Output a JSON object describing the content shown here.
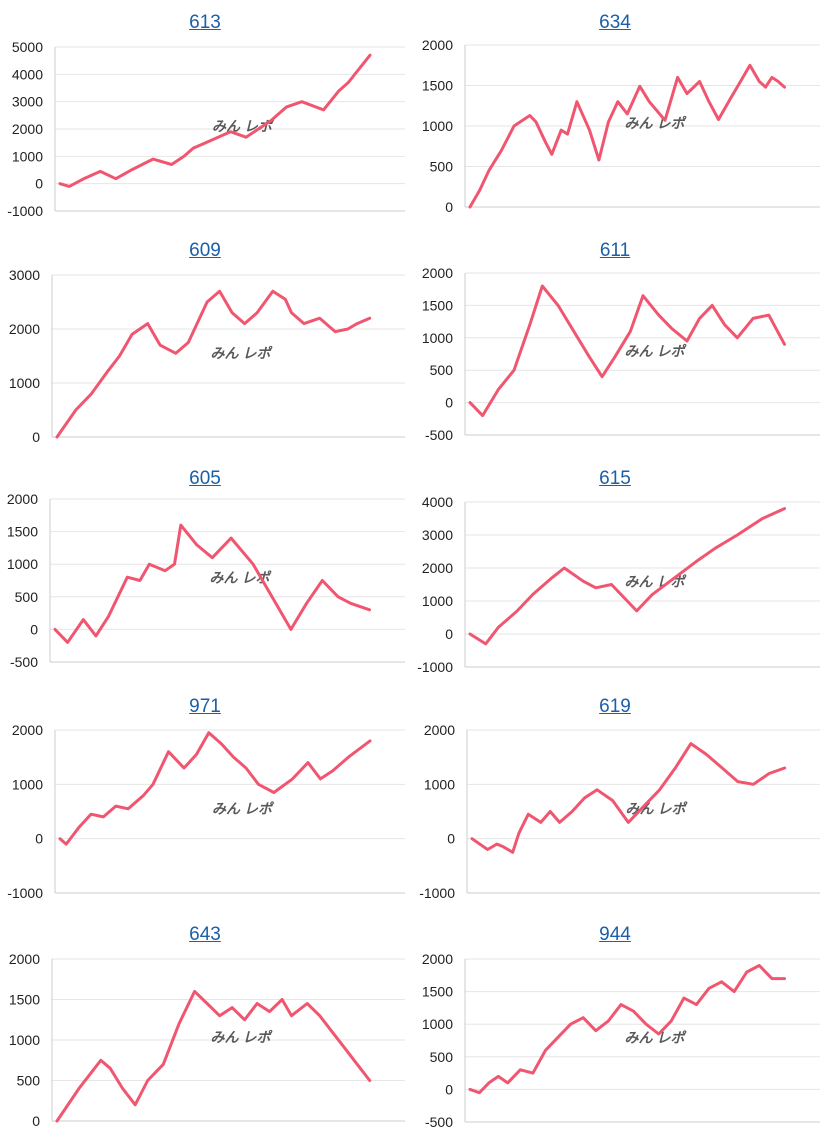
{
  "watermark": {
    "text": "みんレポ",
    "color_pink": "#e8a0a8",
    "color_gray": "#a8a8a8"
  },
  "colors": {
    "line": "#f0566f",
    "grid": "#e6e6e6",
    "axis": "#cccccc"
  },
  "chart_data": [
    {
      "type": "line",
      "title": "613",
      "ylim": [
        -1000,
        5000
      ],
      "yticks": [
        5000,
        4000,
        3000,
        2000,
        1000,
        0,
        -1000
      ],
      "tick_labels": [
        "5000",
        "4000",
        "3000",
        "2000",
        "1000",
        "0",
        "-1000"
      ],
      "x": [
        0,
        3,
        8,
        13,
        18,
        23,
        30,
        36,
        40,
        43,
        47,
        55,
        60,
        68,
        73,
        78,
        85,
        90,
        93,
        100
      ],
      "y": [
        0,
        -100,
        200,
        450,
        180,
        500,
        900,
        700,
        1000,
        1300,
        1500,
        1900,
        1700,
        2300,
        2800,
        3000,
        2700,
        3400,
        3700,
        4700
      ],
      "grid": true
    },
    {
      "type": "line",
      "title": "634",
      "ylim": [
        0,
        2000
      ],
      "yticks": [
        2000,
        1500,
        1000,
        500,
        0
      ],
      "tick_labels": [
        "2000",
        "1500",
        "1000",
        "500",
        "0"
      ],
      "x": [
        0,
        3,
        6,
        10,
        14,
        19,
        21,
        24,
        26,
        29,
        31,
        34,
        38,
        41,
        44,
        47,
        50,
        54,
        57,
        62,
        66,
        69,
        73,
        76,
        79,
        83,
        86,
        89,
        92,
        94,
        96,
        98,
        100
      ],
      "y": [
        0,
        200,
        450,
        700,
        1000,
        1130,
        1050,
        800,
        650,
        950,
        900,
        1300,
        950,
        580,
        1050,
        1300,
        1150,
        1490,
        1300,
        1070,
        1600,
        1400,
        1550,
        1300,
        1080,
        1350,
        1550,
        1750,
        1550,
        1480,
        1600,
        1550,
        1480
      ],
      "grid": true
    },
    {
      "type": "line",
      "title": "609",
      "ylim": [
        0,
        3000
      ],
      "yticks": [
        3000,
        2000,
        1000,
        0
      ],
      "tick_labels": [
        "3000",
        "2000",
        "1000",
        "0"
      ],
      "x": [
        0,
        6,
        11,
        16,
        20,
        24,
        29,
        33,
        38,
        42,
        48,
        52,
        56,
        60,
        64,
        69,
        73,
        75,
        79,
        84,
        89,
        93,
        96,
        100
      ],
      "y": [
        0,
        500,
        800,
        1200,
        1500,
        1900,
        2100,
        1700,
        1550,
        1750,
        2500,
        2700,
        2300,
        2100,
        2300,
        2700,
        2550,
        2300,
        2100,
        2200,
        1950,
        2000,
        2100,
        2200
      ],
      "grid": true
    },
    {
      "type": "line",
      "title": "611",
      "ylim": [
        -500,
        2000
      ],
      "yticks": [
        2000,
        1500,
        1000,
        500,
        0,
        -500
      ],
      "tick_labels": [
        "2000",
        "1500",
        "1000",
        "500",
        "0",
        "-500"
      ],
      "x": [
        0,
        4,
        9,
        14,
        19,
        23,
        28,
        33,
        38,
        42,
        46,
        51,
        55,
        60,
        64,
        69,
        73,
        77,
        81,
        85,
        90,
        95,
        100
      ],
      "y": [
        0,
        -200,
        200,
        500,
        1200,
        1800,
        1500,
        1100,
        700,
        400,
        700,
        1100,
        1650,
        1350,
        1150,
        950,
        1300,
        1500,
        1200,
        1000,
        1300,
        1350,
        900
      ],
      "grid": true
    },
    {
      "type": "line",
      "title": "605",
      "ylim": [
        -500,
        2000
      ],
      "yticks": [
        2000,
        1500,
        1000,
        500,
        0,
        -500
      ],
      "tick_labels": [
        "2000",
        "1500",
        "1000",
        "500",
        "0",
        "-500"
      ],
      "x": [
        0,
        4,
        9,
        13,
        17,
        23,
        27,
        30,
        35,
        38,
        40,
        45,
        50,
        56,
        63,
        69,
        75,
        80,
        85,
        90,
        94,
        100
      ],
      "y": [
        0,
        -200,
        150,
        -100,
        200,
        800,
        750,
        1000,
        900,
        1000,
        1600,
        1300,
        1100,
        1400,
        1000,
        500,
        0,
        400,
        750,
        500,
        400,
        300
      ],
      "grid": true
    },
    {
      "type": "line",
      "title": "615",
      "ylim": [
        -1000,
        4000
      ],
      "yticks": [
        4000,
        3000,
        2000,
        1000,
        0,
        -1000
      ],
      "tick_labels": [
        "4000",
        "3000",
        "2000",
        "1000",
        "0",
        "-1000"
      ],
      "x": [
        0,
        5,
        9,
        15,
        20,
        26,
        30,
        36,
        40,
        45,
        53,
        58,
        65,
        72,
        78,
        85,
        93,
        100
      ],
      "y": [
        0,
        -300,
        200,
        700,
        1200,
        1700,
        2000,
        1600,
        1400,
        1500,
        700,
        1200,
        1700,
        2200,
        2600,
        3000,
        3500,
        3800
      ],
      "grid": true
    },
    {
      "type": "line",
      "title": "971",
      "ylim": [
        -1000,
        2000
      ],
      "yticks": [
        2000,
        1000,
        0,
        -1000
      ],
      "tick_labels": [
        "2000",
        "1000",
        "0",
        "-1000"
      ],
      "x": [
        0,
        2,
        6,
        10,
        14,
        18,
        22,
        27,
        30,
        35,
        40,
        44,
        48,
        52,
        56,
        60,
        64,
        69,
        75,
        80,
        84,
        88,
        93,
        100
      ],
      "y": [
        0,
        -100,
        200,
        450,
        400,
        600,
        550,
        800,
        1000,
        1600,
        1300,
        1550,
        1950,
        1750,
        1500,
        1300,
        1000,
        850,
        1100,
        1400,
        1100,
        1250,
        1500,
        1800
      ],
      "grid": true
    },
    {
      "type": "line",
      "title": "619",
      "ylim": [
        -1000,
        2000
      ],
      "yticks": [
        2000,
        1000,
        0,
        -1000
      ],
      "tick_labels": [
        "2000",
        "1000",
        "0",
        "-1000"
      ],
      "x": [
        0,
        5,
        8,
        10,
        13,
        15,
        18,
        22,
        25,
        28,
        32,
        36,
        40,
        45,
        50,
        55,
        60,
        65,
        70,
        75,
        80,
        85,
        90,
        95,
        100
      ],
      "y": [
        0,
        -200,
        -100,
        -150,
        -250,
        100,
        450,
        300,
        500,
        300,
        500,
        750,
        900,
        700,
        300,
        600,
        900,
        1300,
        1750,
        1550,
        1300,
        1050,
        1000,
        1200,
        1300
      ],
      "grid": true
    },
    {
      "type": "line",
      "title": "643",
      "ylim": [
        0,
        2000
      ],
      "yticks": [
        2000,
        1500,
        1000,
        500,
        0
      ],
      "tick_labels": [
        "2000",
        "1500",
        "1000",
        "500",
        "0"
      ],
      "x": [
        0,
        7,
        14,
        17,
        21,
        25,
        29,
        34,
        39,
        44,
        48,
        52,
        56,
        60,
        64,
        68,
        72,
        75,
        80,
        84,
        88,
        92,
        96,
        100
      ],
      "y": [
        0,
        400,
        750,
        650,
        400,
        200,
        500,
        700,
        1200,
        1600,
        1450,
        1300,
        1400,
        1250,
        1450,
        1350,
        1500,
        1300,
        1450,
        1300,
        1100,
        900,
        700,
        500
      ],
      "grid": true
    },
    {
      "type": "line",
      "title": "944",
      "ylim": [
        -500,
        2000
      ],
      "yticks": [
        2000,
        1500,
        1000,
        500,
        0,
        -500
      ],
      "tick_labels": [
        "2000",
        "1500",
        "1000",
        "500",
        "0",
        "-500"
      ],
      "x": [
        0,
        3,
        6,
        9,
        12,
        16,
        20,
        24,
        28,
        32,
        36,
        40,
        44,
        48,
        52,
        56,
        60,
        64,
        68,
        72,
        76,
        80,
        84,
        88,
        92,
        96,
        100
      ],
      "y": [
        0,
        -50,
        100,
        200,
        100,
        300,
        250,
        600,
        800,
        1000,
        1100,
        900,
        1050,
        1300,
        1200,
        1000,
        850,
        1050,
        1400,
        1300,
        1550,
        1650,
        1500,
        1800,
        1900,
        1700,
        1700
      ],
      "grid": true
    }
  ]
}
